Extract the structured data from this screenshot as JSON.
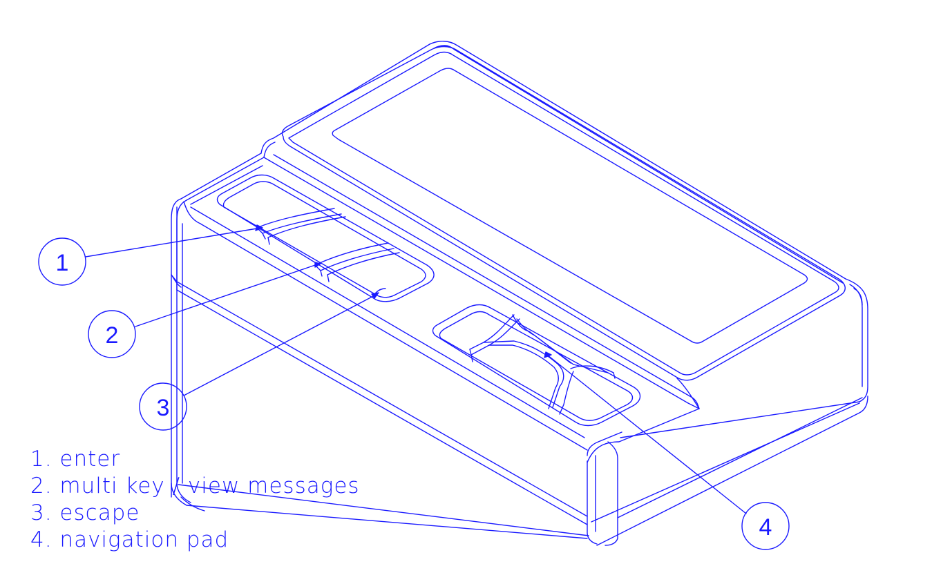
{
  "callouts": [
    {
      "number": "1"
    },
    {
      "number": "2"
    },
    {
      "number": "3"
    },
    {
      "number": "4"
    }
  ],
  "legend": [
    "1. enter",
    "2. multi key / view messages",
    "3. escape",
    "4. navigation pad"
  ],
  "colors": {
    "line": "#1a1aff",
    "background": "#ffffff"
  }
}
